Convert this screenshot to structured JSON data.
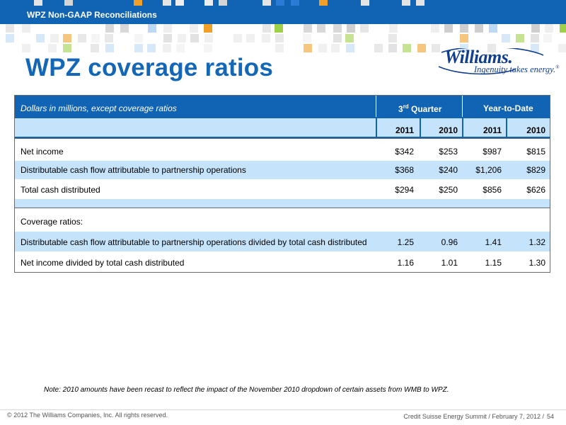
{
  "header": {
    "section_label": "WPZ Non-GAAP Reconciliations",
    "colors": {
      "band": "#1163b3",
      "title": "#1467b6",
      "row_band": "#c5e3fb"
    }
  },
  "page": {
    "title": "WPZ coverage ratios"
  },
  "logo": {
    "name": "Williams.",
    "tagline": "Ingenuity takes energy.",
    "trademark": "®"
  },
  "table": {
    "units_label": "Dollars in millions, except coverage ratios",
    "group_headers": [
      "3rd Quarter",
      "Year-to-Date"
    ],
    "quarter_superscript": "rd",
    "quarter_prefix": "3",
    "quarter_suffix": " Quarter",
    "years": [
      "2011",
      "2010",
      "2011",
      "2010"
    ],
    "rows": [
      {
        "label": "Net  income",
        "values": [
          "$342",
          "$253",
          "$987",
          "$815"
        ]
      },
      {
        "label": "Distributable cash flow attributable to partnership operations",
        "values": [
          "$368",
          "$240",
          "$1,206",
          "$829"
        ]
      },
      {
        "label": "Total cash distributed",
        "values": [
          "$294",
          "$250",
          "$856",
          "$626"
        ]
      }
    ],
    "ratios_heading": "Coverage ratios:",
    "ratio_rows": [
      {
        "label": "Distributable cash flow attributable to partnership operations divided by total cash distributed",
        "values": [
          "1.25",
          "0.96",
          "1.41",
          "1.32"
        ]
      },
      {
        "label": "Net income divided by total cash distributed",
        "values": [
          "1.16",
          "1.01",
          "1.15",
          "1.30"
        ]
      }
    ]
  },
  "note": "Note: 2010 amounts have been recast to reflect the impact of the November 2010 dropdown of certain assets from WMB to WPZ.",
  "footer": {
    "copyright": "© 2012 The Williams Companies, Inc. All rights reserved.",
    "event": "Credit Suisse Energy Summit / February 7, 2012 /",
    "slide_number": "54"
  }
}
